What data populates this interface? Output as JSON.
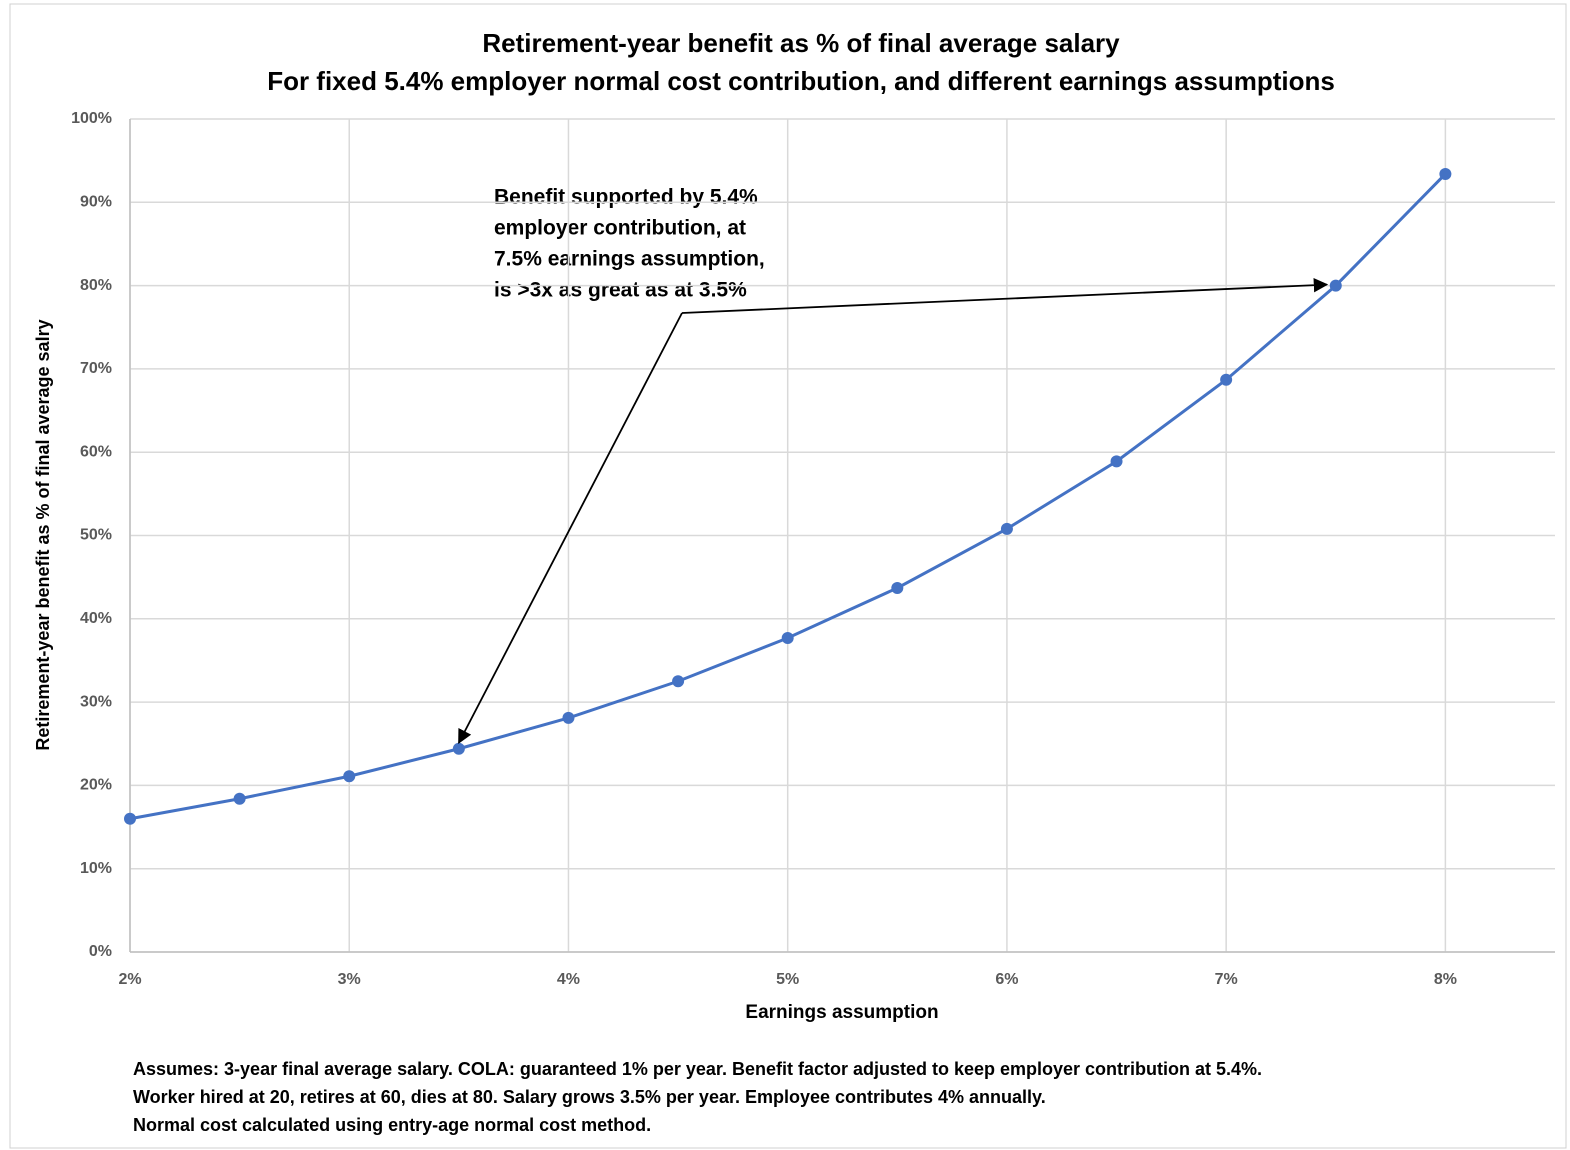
{
  "chart_data": {
    "type": "line",
    "title": "Retirement-year benefit as % of final average salary",
    "subtitle": "For fixed 5.4% employer normal cost contribution, and different earnings assumptions",
    "x_label": "Earnings assumption",
    "y_label": "Retirement-year benefit as % of final average salry",
    "x": [
      2,
      2.5,
      3,
      3.5,
      4,
      4.5,
      5,
      5.5,
      6,
      6.5,
      7,
      7.5,
      8
    ],
    "values": [
      16,
      18.4,
      21.1,
      24.4,
      28.1,
      32.5,
      37.7,
      43.7,
      50.8,
      58.9,
      68.7,
      80,
      93.4
    ],
    "color": "#4472c4",
    "xlim": [
      2,
      8.5
    ],
    "xticks": [
      {
        "value": 2,
        "label": "2%"
      },
      {
        "value": 3,
        "label": "3%"
      },
      {
        "value": 4,
        "label": "4%"
      },
      {
        "value": 5,
        "label": "5%"
      },
      {
        "value": 6,
        "label": "6%"
      },
      {
        "value": 7,
        "label": "7%"
      },
      {
        "value": 8,
        "label": "8%"
      }
    ],
    "ylim": [
      0,
      100
    ],
    "yticks": [
      {
        "value": 0,
        "label": "0%"
      },
      {
        "value": 10,
        "label": "10%"
      },
      {
        "value": 20,
        "label": "20%"
      },
      {
        "value": 30,
        "label": "30%"
      },
      {
        "value": 40,
        "label": "40%"
      },
      {
        "value": 50,
        "label": "50%"
      },
      {
        "value": 60,
        "label": "60%"
      },
      {
        "value": 70,
        "label": "70%"
      },
      {
        "value": 80,
        "label": "80%"
      },
      {
        "value": 90,
        "label": "90%"
      },
      {
        "value": 100,
        "label": "100%"
      }
    ],
    "grid": true,
    "annotation": [
      "Benefit supported by 5.4%",
      "employer contribution, at",
      "7.5% earnings assumption,",
      "is >3x as great as at 3.5%"
    ],
    "notes": [
      "Assumes:  3-year final average salary.  COLA:  guaranteed 1% per year. Benefit factor adjusted to keep employer contribution at 5.4%.",
      "Worker hired at 20, retires at 60, dies at 80. Salary grows 3.5% per year. Employee contributes 4% annually.",
      "Normal cost calculated using entry-age normal cost method."
    ]
  }
}
